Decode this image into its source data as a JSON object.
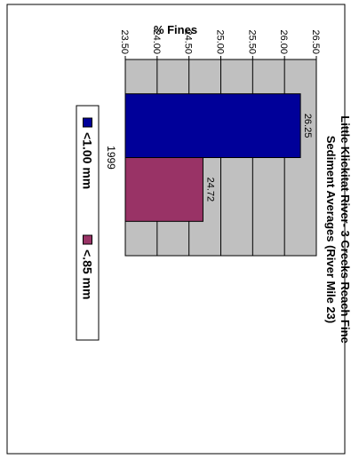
{
  "chart_data": {
    "type": "bar",
    "orientation": "rotated-90-clockwise",
    "title": "Little Klickitat River- 3 Creeks Reach Fine Sediment Averages (River Mile 23)",
    "title_lines": [
      "Little Klickitat River- 3 Creeks Reach Fine",
      "Sediment Averages (River Mile 23)"
    ],
    "xlabel": "",
    "ylabel": "% Fines",
    "categories": [
      "1999"
    ],
    "series": [
      {
        "name": "<1.00 mm",
        "values": [
          26.25
        ],
        "color": "#000099",
        "data_label": "26.25"
      },
      {
        "name": "<.85 mm",
        "values": [
          24.72
        ],
        "color": "#993366",
        "data_label": "24.72"
      }
    ],
    "ylim": [
      23.5,
      26.5
    ],
    "yticks": [
      "26.50",
      "26.00",
      "25.50",
      "25.00",
      "24.50",
      "24.00",
      "23.50"
    ],
    "grid": true,
    "plot_background": "#c0c0c0",
    "legend_position": "right"
  }
}
